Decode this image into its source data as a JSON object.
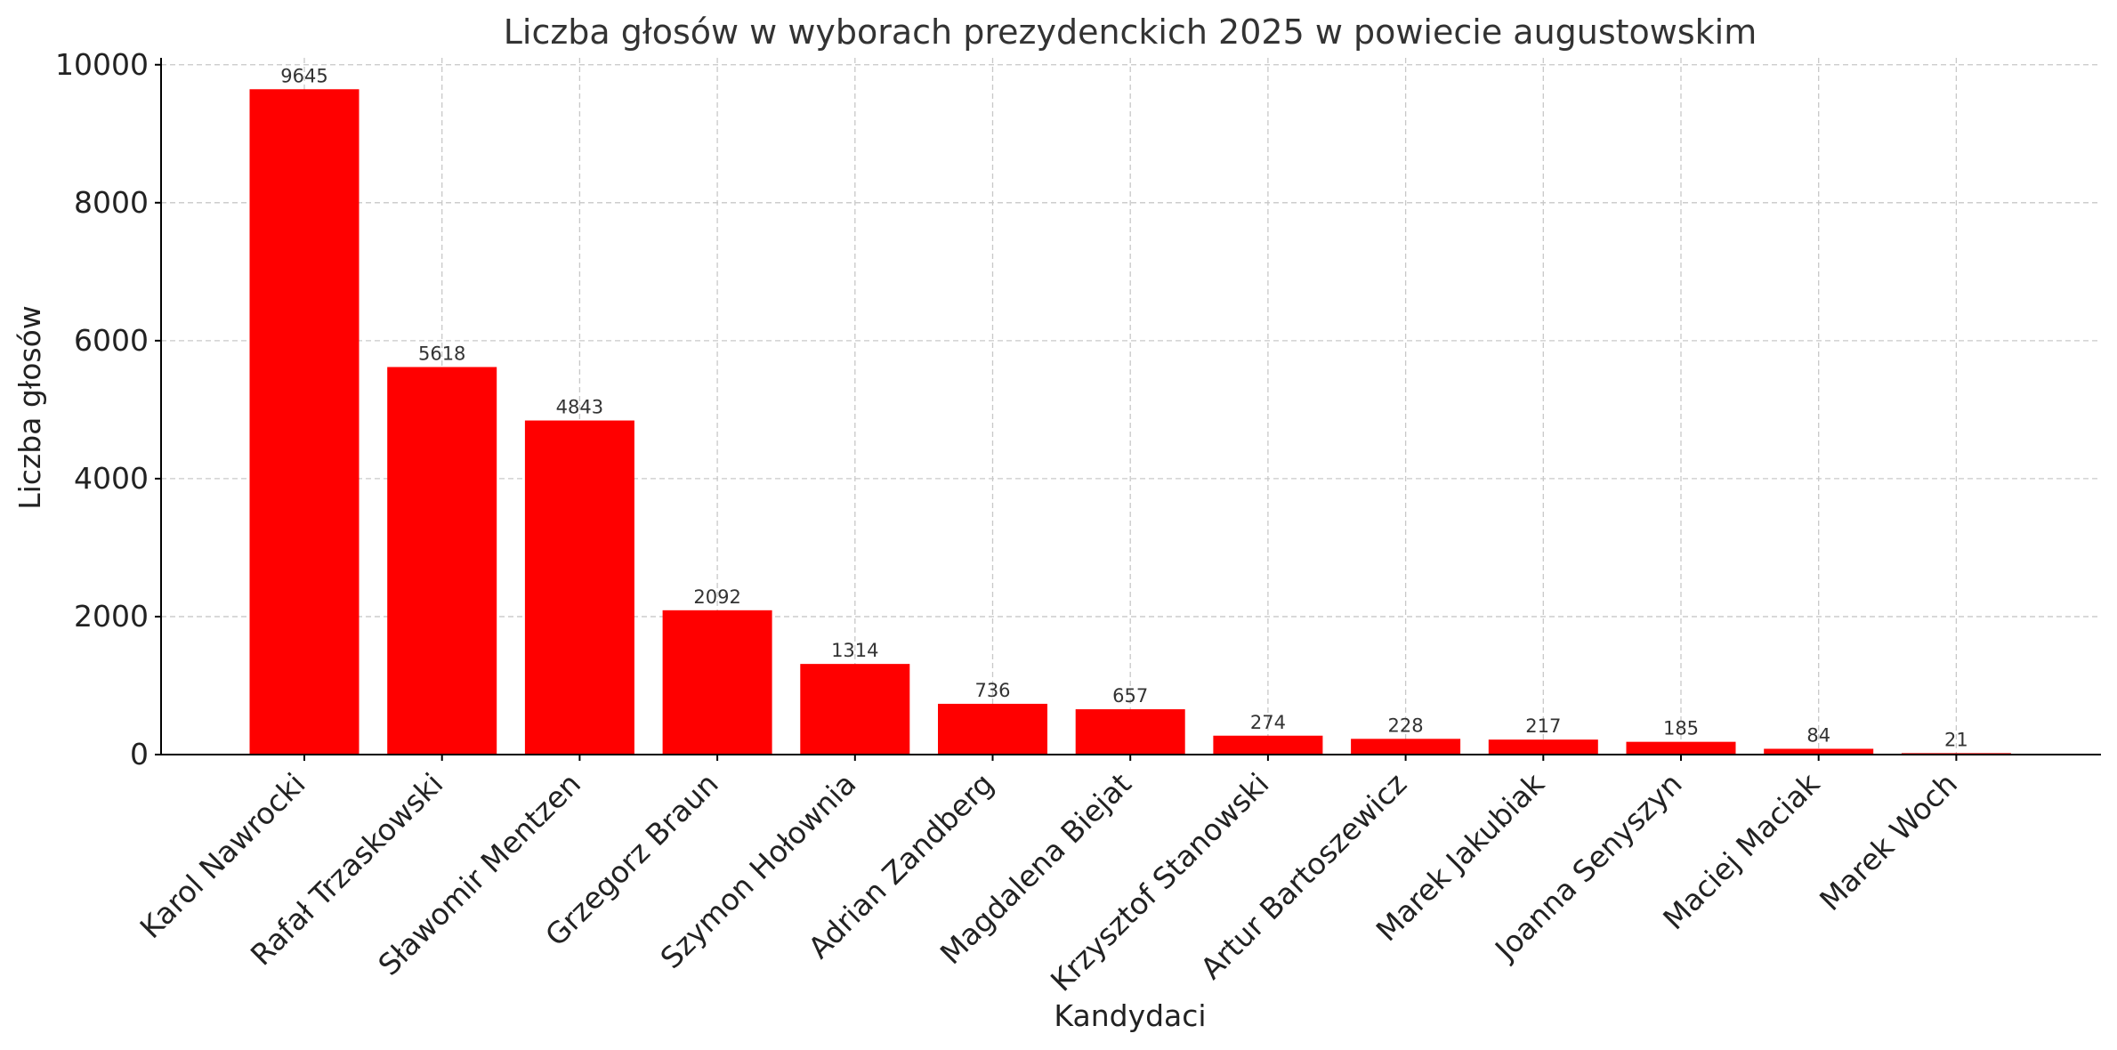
{
  "chart_data": {
    "type": "bar",
    "title": "Liczba głosów w wyborach prezydenckich 2025 w powiecie augustowskim",
    "xlabel": "Kandydaci",
    "ylabel": "Liczba głosów",
    "categories": [
      "Karol Nawrocki",
      "Rafał Trzaskowski",
      "Sławomir Mentzen",
      "Grzegorz Braun",
      "Szymon Hołownia",
      "Adrian Zandberg",
      "Magdalena Biejat",
      "Krzysztof Stanowski",
      "Artur Bartoszewicz",
      "Marek Jakubiak",
      "Joanna Senyszyn",
      "Maciej Maciak",
      "Marek Woch"
    ],
    "values": [
      9645,
      5618,
      4843,
      2092,
      1314,
      736,
      657,
      274,
      228,
      217,
      185,
      84,
      21
    ],
    "data_labels": [
      "9645",
      "5618",
      "4843",
      "2092",
      "1314",
      "736",
      "657",
      "274",
      "228",
      "217",
      "185",
      "84",
      "21"
    ],
    "ylim": [
      0,
      10100
    ],
    "yticks": [
      0,
      2000,
      4000,
      6000,
      8000,
      10000
    ],
    "ytick_labels": [
      "0",
      "2000",
      "4000",
      "6000",
      "8000",
      "10000"
    ],
    "grid": true,
    "legend": "none",
    "bar_color": "#ff0000",
    "grid_color": "#c8c8c8"
  }
}
